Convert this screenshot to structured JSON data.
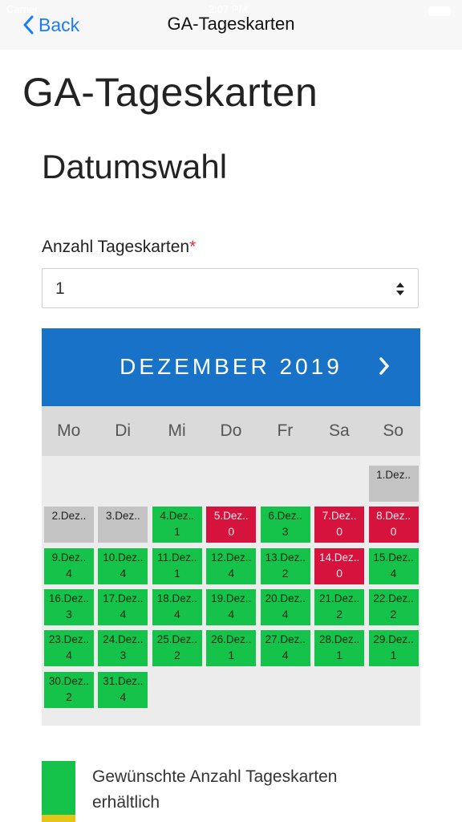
{
  "status": {
    "carrier": "Carrier",
    "time": "2:07 PM"
  },
  "nav": {
    "back_label": "Back",
    "title": "GA-Tageskarten"
  },
  "page": {
    "title": "GA-Tageskarten",
    "section": "Datumswahl"
  },
  "form": {
    "label": "Anzahl Tageskarten",
    "required_mark": "*",
    "selected": "1"
  },
  "calendar": {
    "month_label": "DEZEMBER 2019",
    "weekdays": [
      "Mo",
      "Di",
      "Mi",
      "Do",
      "Fr",
      "Sa",
      "So"
    ],
    "days": [
      {
        "label": "1.Dez..",
        "count": "",
        "status": "grey"
      },
      {
        "label": "2.Dez..",
        "count": "",
        "status": "grey"
      },
      {
        "label": "3.Dez..",
        "count": "",
        "status": "grey"
      },
      {
        "label": "4.Dez..",
        "count": "1",
        "status": "green"
      },
      {
        "label": "5.Dez..",
        "count": "0",
        "status": "red"
      },
      {
        "label": "6.Dez..",
        "count": "3",
        "status": "green"
      },
      {
        "label": "7.Dez..",
        "count": "0",
        "status": "red"
      },
      {
        "label": "8.Dez..",
        "count": "0",
        "status": "red"
      },
      {
        "label": "9.Dez..",
        "count": "4",
        "status": "green"
      },
      {
        "label": "10.Dez..",
        "count": "4",
        "status": "green"
      },
      {
        "label": "11.Dez..",
        "count": "1",
        "status": "green"
      },
      {
        "label": "12.Dez..",
        "count": "4",
        "status": "green"
      },
      {
        "label": "13.Dez..",
        "count": "2",
        "status": "green"
      },
      {
        "label": "14.Dez..",
        "count": "0",
        "status": "red"
      },
      {
        "label": "15.Dez..",
        "count": "4",
        "status": "green"
      },
      {
        "label": "16.Dez..",
        "count": "3",
        "status": "green"
      },
      {
        "label": "17.Dez..",
        "count": "4",
        "status": "green"
      },
      {
        "label": "18.Dez..",
        "count": "4",
        "status": "green"
      },
      {
        "label": "19.Dez..",
        "count": "4",
        "status": "green"
      },
      {
        "label": "20.Dez..",
        "count": "4",
        "status": "green"
      },
      {
        "label": "21.Dez..",
        "count": "2",
        "status": "green"
      },
      {
        "label": "22.Dez..",
        "count": "2",
        "status": "green"
      },
      {
        "label": "23.Dez..",
        "count": "4",
        "status": "green"
      },
      {
        "label": "24.Dez..",
        "count": "3",
        "status": "green"
      },
      {
        "label": "25.Dez..",
        "count": "2",
        "status": "green"
      },
      {
        "label": "26.Dez..",
        "count": "1",
        "status": "green"
      },
      {
        "label": "27.Dez..",
        "count": "4",
        "status": "green"
      },
      {
        "label": "28.Dez..",
        "count": "1",
        "status": "green"
      },
      {
        "label": "29.Dez..",
        "count": "1",
        "status": "green"
      },
      {
        "label": "30.Dez..",
        "count": "2",
        "status": "green"
      },
      {
        "label": "31.Dez..",
        "count": "4",
        "status": "green"
      }
    ]
  },
  "legend": {
    "text": "Gewünschte Anzahl Tageskarten erhältlich"
  },
  "colors": {
    "green": "#15c24a",
    "red": "#d5133d",
    "grey": "#c3c3c3",
    "blue": "#1873c8",
    "link": "#1a7bff"
  }
}
